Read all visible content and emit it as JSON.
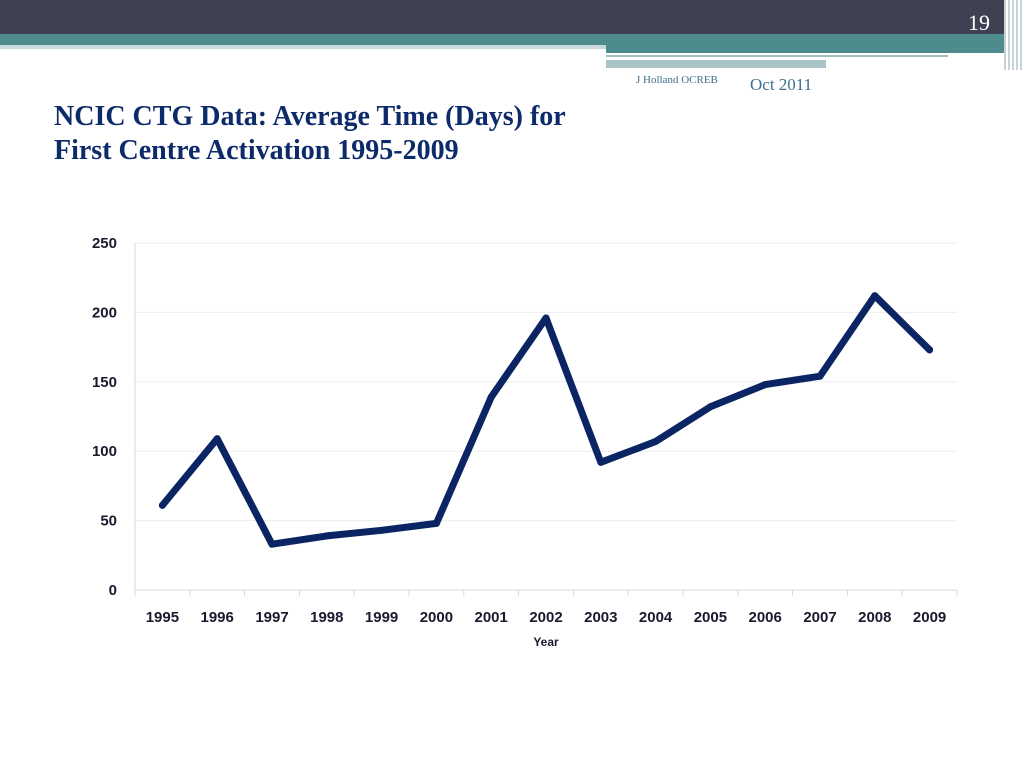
{
  "header": {
    "page_number": "19",
    "author": "J Holland OCREB",
    "date": "Oct 2011"
  },
  "title": {
    "line1": "NCIC CTG Data:  Average Time (Days) for",
    "line2": "First Centre Activation 1995-2009"
  },
  "colors": {
    "line": "#0b2463",
    "header_dark": "#3f4152",
    "header_teal": "#4d8b8d",
    "title": "#0d2a6a"
  },
  "chart_data": {
    "type": "line",
    "title": "",
    "xlabel": "Year",
    "ylabel": "",
    "ylim": [
      0,
      250
    ],
    "yticks": [
      0,
      50,
      100,
      150,
      200,
      250
    ],
    "grid": true,
    "categories": [
      "1995",
      "1996",
      "1997",
      "1998",
      "1999",
      "2000",
      "2001",
      "2002",
      "2003",
      "2004",
      "2005",
      "2006",
      "2007",
      "2008",
      "2009"
    ],
    "series": [
      {
        "values": [
          61,
          109,
          33,
          39,
          43,
          48,
          139,
          196,
          92,
          107,
          132,
          148,
          154,
          212,
          173
        ]
      }
    ]
  }
}
